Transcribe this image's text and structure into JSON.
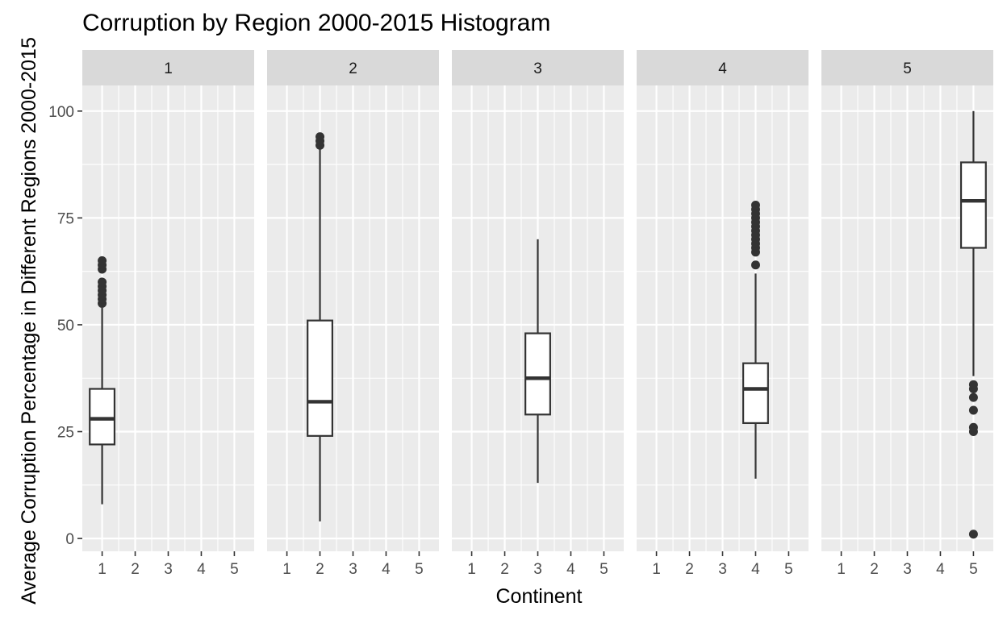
{
  "chart_data": {
    "type": "boxplot",
    "title": "Corruption by Region 2000-2015 Histogram",
    "xlabel": "Continent",
    "ylabel": "Average Corruption Percentage in Different Regions 2000-2015",
    "x_tick_labels": [
      "1",
      "2",
      "3",
      "4",
      "5"
    ],
    "y_ticks": [
      0,
      25,
      50,
      75,
      100
    ],
    "y_tick_labels": [
      "0",
      "25",
      "50",
      "75",
      "100"
    ],
    "ylim": [
      -3,
      106
    ],
    "facet_labels": [
      "1",
      "2",
      "3",
      "4",
      "5"
    ],
    "grid": true,
    "legend": "none",
    "colors": {
      "panel_bg": "#ebebeb",
      "strip_bg": "#d9d9d9",
      "grid": "#ffffff",
      "box_fill": "#ffffff",
      "box_line": "#333333"
    },
    "boxes": [
      {
        "facet": "1",
        "x": 1,
        "whisker_low": 8,
        "q1": 22,
        "median": 28,
        "q3": 35,
        "whisker_high": 54,
        "outliers": [
          55,
          56,
          57,
          58,
          59,
          60,
          63,
          64,
          65
        ]
      },
      {
        "facet": "2",
        "x": 2,
        "whisker_low": 4,
        "q1": 24,
        "median": 32,
        "q3": 51,
        "whisker_high": 91,
        "outliers": [
          92,
          93,
          94
        ]
      },
      {
        "facet": "3",
        "x": 3,
        "whisker_low": 13,
        "q1": 29,
        "median": 37.5,
        "q3": 48,
        "whisker_high": 70,
        "outliers": []
      },
      {
        "facet": "4",
        "x": 4,
        "whisker_low": 14,
        "q1": 27,
        "median": 35,
        "q3": 41,
        "whisker_high": 62,
        "outliers": [
          64,
          67,
          68,
          69,
          70,
          71,
          72,
          73,
          74,
          75,
          76,
          77,
          78
        ]
      },
      {
        "facet": "5",
        "x": 5,
        "whisker_low": 38,
        "q1": 68,
        "median": 79,
        "q3": 88,
        "whisker_high": 100,
        "outliers": [
          1,
          25,
          26,
          30,
          33,
          35,
          36
        ]
      }
    ]
  }
}
